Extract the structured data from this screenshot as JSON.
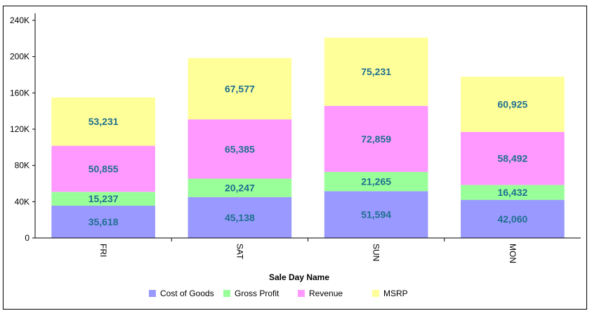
{
  "chart_data": {
    "type": "bar",
    "stacked": true,
    "title": "",
    "xlabel": "Sale Day Name",
    "ylabel": "",
    "categories": [
      "FRI",
      "SAT",
      "SUN",
      "MON"
    ],
    "series": [
      {
        "name": "Cost of Goods",
        "color": "#9999ff",
        "values": [
          35618,
          45138,
          51594,
          42060
        ]
      },
      {
        "name": "Gross Profit",
        "color": "#99ff99",
        "values": [
          15237,
          20247,
          21265,
          16432
        ]
      },
      {
        "name": "Revenue",
        "color": "#ff99ff",
        "values": [
          50855,
          65385,
          72859,
          58492
        ]
      },
      {
        "name": "MSRP",
        "color": "#ffff99",
        "values": [
          53231,
          67577,
          75231,
          60925
        ]
      }
    ],
    "ylim": [
      0,
      240000
    ],
    "yticks": [
      0,
      40000,
      80000,
      120000,
      160000,
      200000,
      240000
    ],
    "ytick_labels": [
      "0",
      "40K",
      "80K",
      "120K",
      "160K",
      "200K",
      "240K"
    ],
    "data_labels": [
      [
        "35,618",
        "45,138",
        "51,594",
        "42,060"
      ],
      [
        "15,237",
        "20,247",
        "21,265",
        "16,432"
      ],
      [
        "50,855",
        "65,385",
        "72,859",
        "58,492"
      ],
      [
        "53,231",
        "67,577",
        "75,231",
        "60,925"
      ]
    ],
    "grid": false,
    "legend_position": "bottom"
  }
}
